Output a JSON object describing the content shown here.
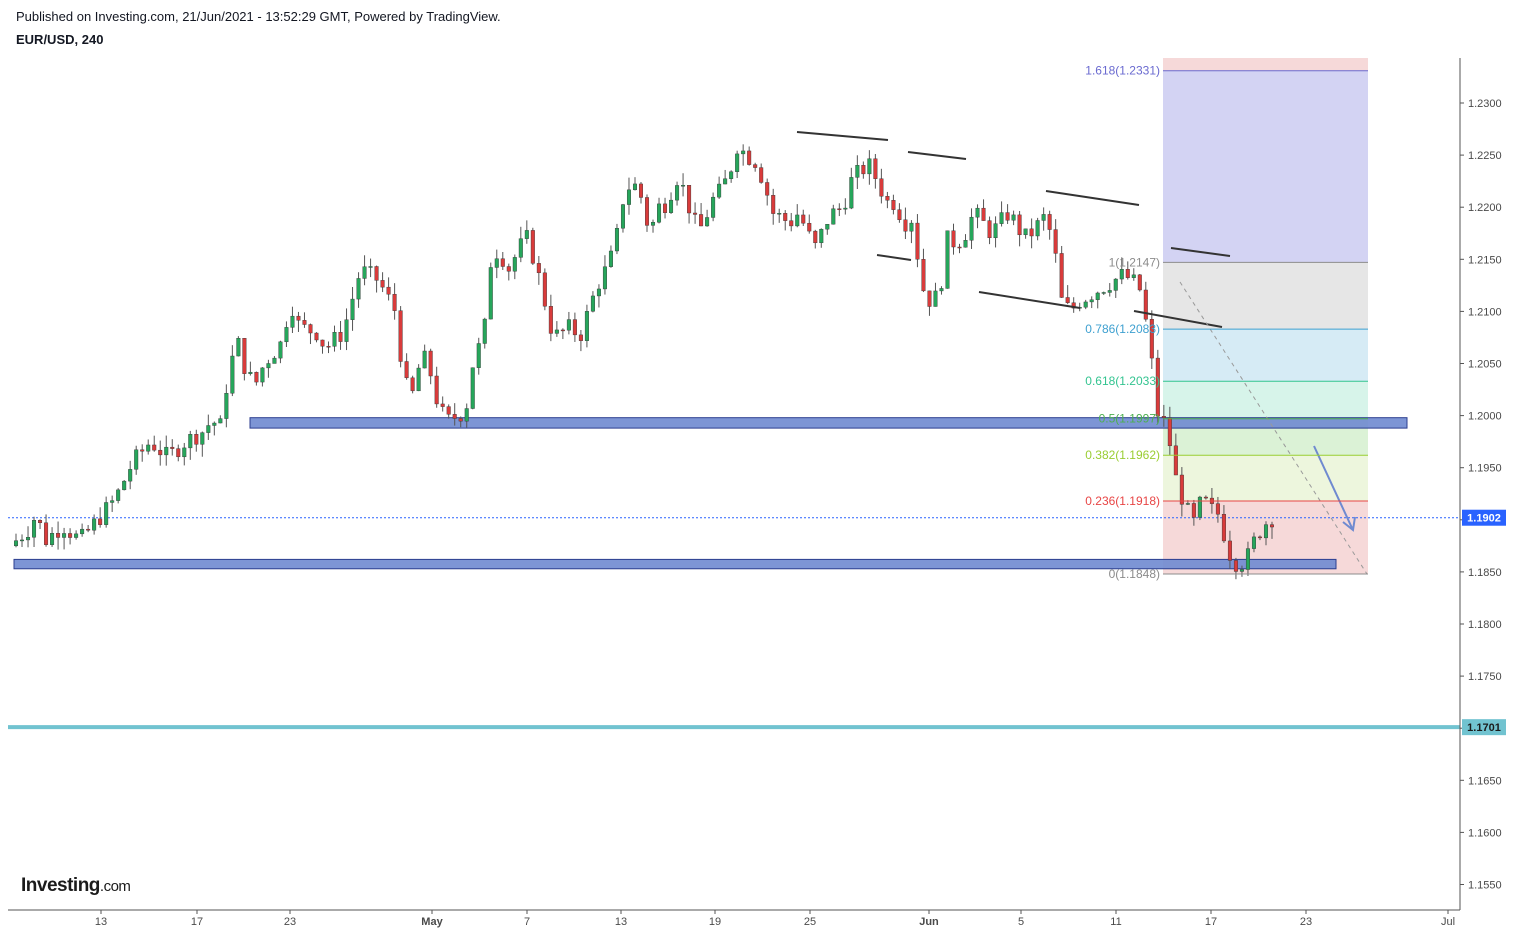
{
  "header": {
    "published": "Published on Investing.com, 21/Jun/2021 - 13:52:29 GMT, Powered by TradingView.",
    "symbol": "EUR/USD, 240"
  },
  "logo": {
    "bold": "Investing",
    "suffix": ".com"
  },
  "chart_data": {
    "type": "candlestick",
    "symbol": "EUR/USD",
    "interval": "240",
    "y_axis": {
      "range": [
        1.152,
        1.2355
      ],
      "ticks": [
        "1.2300",
        "1.2250",
        "1.2200",
        "1.2150",
        "1.2100",
        "1.2050",
        "1.2000",
        "1.1950",
        "1.1900",
        "1.1850",
        "1.1800",
        "1.1750",
        "1.1700",
        "1.1650",
        "1.1600",
        "1.1550"
      ]
    },
    "x_axis": {
      "ticks": [
        "13",
        "17",
        "23",
        "May",
        "7",
        "13",
        "19",
        "25",
        "Jun",
        "5",
        "11",
        "17",
        "23",
        "Jul"
      ],
      "bold_ticks": [
        "May",
        "Jun"
      ]
    },
    "current_price": {
      "label": "1.1902",
      "value": 1.1902,
      "color": "#2962ff"
    },
    "horizontal_level": {
      "label": "1.1701",
      "value": 1.1701,
      "color": "#71c3d0"
    },
    "support_zones": [
      {
        "low": 1.1988,
        "high": 1.1998,
        "color": "#6f8ad0"
      },
      {
        "low": 1.1853,
        "high": 1.1862,
        "color": "#6f8ad0"
      }
    ],
    "fibonacci": [
      {
        "label": "1.618(1.2331)",
        "value": 1.2331,
        "color": "#6a6ad0",
        "band": "#d3d3f3"
      },
      {
        "label": "1(1.2147)",
        "value": 1.2147,
        "color": "#8c8c8c",
        "band": "#e6e6e6"
      },
      {
        "label": "0.786(1.2083)",
        "value": 1.2083,
        "color": "#3ea0d0",
        "band": "#d6ebf5"
      },
      {
        "label": "0.618(1.2033)",
        "value": 1.2033,
        "color": "#33c490",
        "band": "#d7f4ea"
      },
      {
        "label": "0.5(1.1997)",
        "value": 1.1997,
        "color": "#4caf50",
        "band": "#dbf2d6"
      },
      {
        "label": "0.382(1.1962)",
        "value": 1.1962,
        "color": "#9acd32",
        "band": "#edf6dd"
      },
      {
        "label": "0.236(1.1918)",
        "value": 1.1918,
        "color": "#e84545",
        "band": "#f6d9d9"
      },
      {
        "label": "0(1.1848)",
        "value": 1.1848,
        "color": "#8c8c8c",
        "band": ""
      }
    ],
    "colors": {
      "up": "#26a65b",
      "down": "#d93b3b",
      "wick": "#555555"
    },
    "price_path": [
      [
        0,
        1.1875
      ],
      [
        2,
        1.189
      ],
      [
        3,
        1.1905
      ],
      [
        4,
        1.188
      ],
      [
        6,
        1.1895
      ],
      [
        8,
        1.188
      ],
      [
        10,
        1.19
      ],
      [
        12,
        1.192
      ],
      [
        14,
        1.1955
      ],
      [
        16,
        1.1975
      ],
      [
        18,
        1.196
      ],
      [
        20,
        1.1975
      ],
      [
        22,
        1.1985
      ],
      [
        23,
        1.1995
      ],
      [
        24,
        1.199
      ],
      [
        25,
        1.2045
      ],
      [
        26,
        1.207
      ],
      [
        27,
        1.204
      ],
      [
        28,
        1.203
      ],
      [
        29,
        1.205
      ],
      [
        31,
        1.207
      ],
      [
        32,
        1.211
      ],
      [
        33,
        1.2085
      ],
      [
        35,
        1.208
      ],
      [
        36,
        1.2065
      ],
      [
        38,
        1.208
      ],
      [
        40,
        1.214
      ],
      [
        42,
        1.213
      ],
      [
        44,
        1.21
      ],
      [
        45,
        1.203
      ],
      [
        46,
        1.202
      ],
      [
        47,
        1.206
      ],
      [
        48,
        1.204
      ],
      [
        49,
        1.2005
      ],
      [
        50,
        1.1995
      ],
      [
        51,
        1.2
      ],
      [
        52,
        1.2005
      ],
      [
        53,
        1.206
      ],
      [
        54,
        1.207
      ],
      [
        55,
        1.216
      ],
      [
        56,
        1.2155
      ],
      [
        57,
        1.214
      ],
      [
        58,
        1.216
      ],
      [
        59,
        1.217
      ],
      [
        60,
        1.2145
      ],
      [
        61,
        1.211
      ],
      [
        62,
        1.2075
      ],
      [
        63,
        1.208
      ],
      [
        64,
        1.2085
      ],
      [
        65,
        1.2075
      ],
      [
        66,
        1.21
      ],
      [
        67,
        1.2125
      ],
      [
        68,
        1.214
      ],
      [
        69,
        1.216
      ],
      [
        70,
        1.221
      ],
      [
        71,
        1.2225
      ],
      [
        72,
        1.221
      ],
      [
        73,
        1.2175
      ],
      [
        74,
        1.22
      ],
      [
        75,
        1.2205
      ],
      [
        76,
        1.223
      ],
      [
        77,
        1.2215
      ],
      [
        78,
        1.2185
      ],
      [
        79,
        1.218
      ],
      [
        80,
        1.2205
      ],
      [
        81,
        1.2215
      ],
      [
        82,
        1.223
      ],
      [
        83,
        1.226
      ],
      [
        84,
        1.225
      ],
      [
        85,
        1.2245
      ],
      [
        86,
        1.2225
      ],
      [
        87,
        1.2195
      ],
      [
        88,
        1.219
      ],
      [
        89,
        1.2185
      ],
      [
        90,
        1.2195
      ],
      [
        91,
        1.2175
      ],
      [
        92,
        1.216
      ],
      [
        93,
        1.2185
      ],
      [
        94,
        1.2195
      ],
      [
        95,
        1.22
      ],
      [
        96,
        1.2225
      ],
      [
        97,
        1.2235
      ],
      [
        98,
        1.224
      ],
      [
        99,
        1.2225
      ],
      [
        100,
        1.2205
      ],
      [
        101,
        1.2205
      ],
      [
        102,
        1.2185
      ],
      [
        103,
        1.219
      ],
      [
        104,
        1.2125
      ],
      [
        105,
        1.211
      ],
      [
        106,
        1.2115
      ],
      [
        107,
        1.217
      ],
      [
        108,
        1.2165
      ],
      [
        109,
        1.2175
      ],
      [
        110,
        1.2195
      ],
      [
        111,
        1.2185
      ],
      [
        112,
        1.2175
      ],
      [
        113,
        1.2185
      ],
      [
        114,
        1.2195
      ],
      [
        115,
        1.218
      ],
      [
        116,
        1.217
      ],
      [
        117,
        1.218
      ],
      [
        118,
        1.219
      ],
      [
        119,
        1.217
      ],
      [
        120,
        1.211
      ],
      [
        121,
        1.21
      ],
      [
        122,
        1.211
      ],
      [
        123,
        1.2115
      ],
      [
        124,
        1.212
      ],
      [
        125,
        1.2125
      ],
      [
        126,
        1.213
      ],
      [
        127,
        1.2135
      ],
      [
        128,
        1.213
      ],
      [
        129,
        1.212
      ],
      [
        130,
        1.207
      ],
      [
        131,
        1.2
      ],
      [
        132,
        1.199
      ],
      [
        133,
        1.194
      ],
      [
        134,
        1.1915
      ],
      [
        135,
        1.1895
      ],
      [
        136,
        1.192
      ],
      [
        137,
        1.191
      ],
      [
        138,
        1.1905
      ],
      [
        139,
        1.187
      ],
      [
        140,
        1.1858
      ],
      [
        141,
        1.186
      ],
      [
        142,
        1.188
      ],
      [
        143,
        1.1895
      ],
      [
        144,
        1.1902
      ]
    ]
  }
}
